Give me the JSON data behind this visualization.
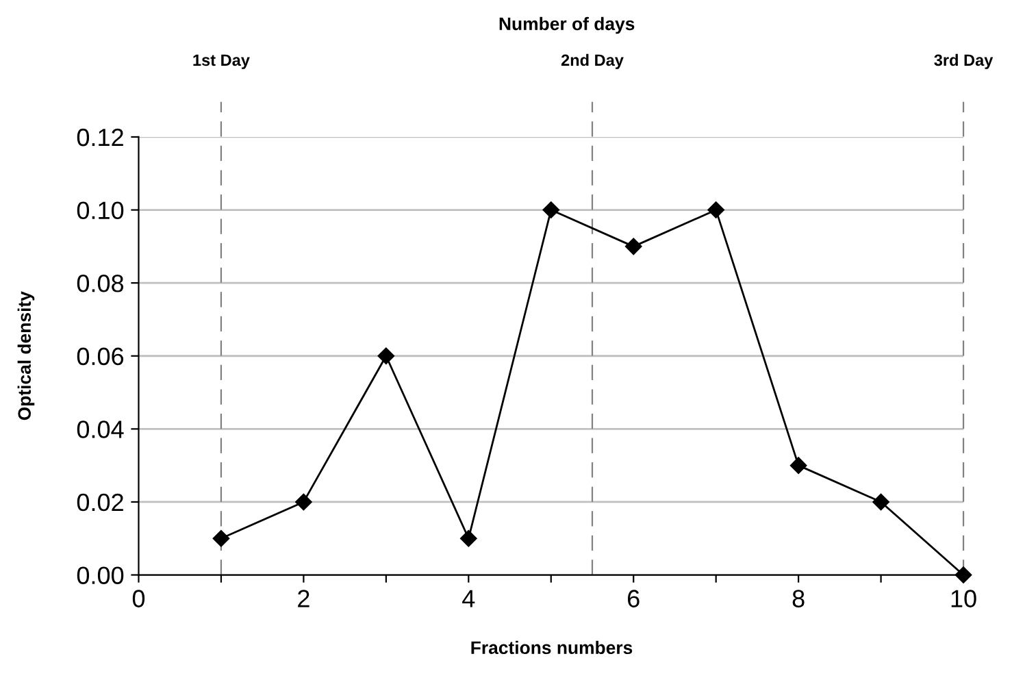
{
  "chart_data": {
    "type": "line",
    "title": "Number of days",
    "xlabel": "Fractions numbers",
    "ylabel": "Optical density",
    "x": [
      1,
      2,
      3,
      4,
      5,
      6,
      7,
      8,
      9,
      10
    ],
    "series": [
      {
        "color": "#000000",
        "values": [
          0.01,
          0.02,
          0.06,
          0.01,
          0.1,
          0.09,
          0.1,
          0.03,
          0.02,
          0.0
        ]
      }
    ],
    "xlim": [
      0,
      10
    ],
    "xticks": [
      0,
      {
        "value": 1,
        "label": null
      },
      2,
      {
        "value": 3,
        "label": null
      },
      4,
      {
        "value": 5,
        "label": null
      },
      6,
      {
        "value": 7,
        "label": null
      },
      8,
      {
        "value": 9,
        "label": null
      },
      10
    ],
    "ylim": [
      0,
      0.12
    ],
    "yticks": [
      {
        "value": 0,
        "label": "0.00"
      },
      {
        "value": 0.02,
        "label": "0.02"
      },
      {
        "value": 0.04,
        "label": "0.04"
      },
      {
        "value": 0.06,
        "label": "0.06"
      },
      {
        "value": 0.08,
        "label": "0.08"
      },
      {
        "value": 0.1,
        "label": "0.10"
      },
      {
        "value": 0.12,
        "label": "0.12"
      }
    ],
    "ref_lines": [
      {
        "axis": "x",
        "value": 1,
        "label": "1st Day",
        "color": "#808080",
        "line_style": "dashed"
      },
      {
        "axis": "x",
        "value": 5.5,
        "label": "2nd Day",
        "color": "#808080",
        "line_style": "dashed"
      },
      {
        "axis": "x",
        "value": 10,
        "label": "3rd Day",
        "color": "#808080",
        "line_style": "dashed"
      }
    ],
    "grid": "y",
    "marker": "diamond",
    "line_style": "solid"
  }
}
